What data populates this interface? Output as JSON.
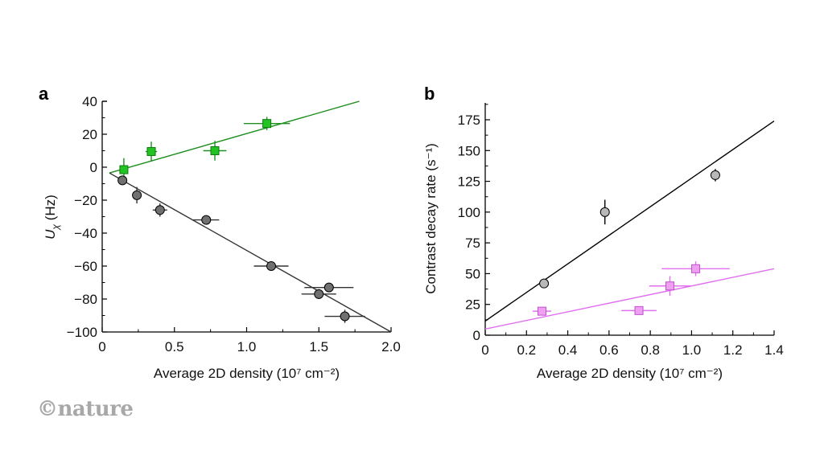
{
  "logo": "©nature",
  "chart_data": [
    {
      "panel": "a",
      "type": "scatter",
      "title": "",
      "xlabel": "Average 2D density (10⁷ cm⁻²)",
      "ylabel": "U_χ (Hz)",
      "xlim": [
        0,
        2.0
      ],
      "ylim": [
        -100,
        40
      ],
      "xticks": [
        0,
        0.5,
        1.0,
        1.5,
        2.0
      ],
      "xtick_labels": [
        "0",
        "0.5",
        "1.0",
        "1.5",
        "2.0"
      ],
      "yticks": [
        40,
        20,
        0,
        -20,
        -40,
        -60,
        -80,
        -100
      ],
      "ytick_labels": [
        "40",
        "20",
        "0",
        "−20",
        "−40",
        "−60",
        "−80",
        "−100"
      ],
      "grid": false,
      "series": [
        {
          "name": "green squares",
          "marker": "square",
          "color": "#22c322",
          "line_color": "#1f8f1f",
          "points": [
            {
              "x": 0.15,
              "y": -1.5,
              "xerr": 0.0,
              "yerr": 7
            },
            {
              "x": 0.34,
              "y": 9.5,
              "xerr": 0.04,
              "yerr": 6
            },
            {
              "x": 0.78,
              "y": 10,
              "xerr": 0.08,
              "yerr": 6
            },
            {
              "x": 1.14,
              "y": 26.5,
              "xerr": 0.16,
              "yerr": 4
            }
          ],
          "fit": {
            "x": [
              0.05,
              1.78
            ],
            "y": [
              -3.5,
              40
            ]
          }
        },
        {
          "name": "grey circles",
          "marker": "circle",
          "color": "#707070",
          "line_color": "#333333",
          "points": [
            {
              "x": 0.14,
              "y": -8,
              "xerr": 0.0,
              "yerr": 1
            },
            {
              "x": 0.24,
              "y": -17,
              "xerr": 0.0,
              "yerr": 5
            },
            {
              "x": 0.4,
              "y": -26,
              "xerr": 0.05,
              "yerr": 4
            },
            {
              "x": 0.72,
              "y": -32,
              "xerr": 0.09,
              "yerr": 2
            },
            {
              "x": 1.17,
              "y": -60,
              "xerr": 0.12,
              "yerr": 0
            },
            {
              "x": 1.57,
              "y": -73,
              "xerr": 0.17,
              "yerr": 0
            },
            {
              "x": 1.5,
              "y": -77,
              "xerr": 0.12,
              "yerr": 3
            },
            {
              "x": 1.68,
              "y": -90.5,
              "xerr": 0.14,
              "yerr": 4
            }
          ],
          "fit": {
            "x": [
              0.05,
              2.0
            ],
            "y": [
              -3.5,
              -100
            ]
          }
        }
      ]
    },
    {
      "panel": "b",
      "type": "scatter",
      "title": "",
      "xlabel": "Average 2D density (10⁷ cm⁻²)",
      "ylabel": "Contrast decay rate (s⁻¹)",
      "xlim": [
        0,
        1.4
      ],
      "ylim": [
        0,
        190
      ],
      "xticks": [
        0,
        0.2,
        0.4,
        0.6,
        0.8,
        1.0,
        1.2,
        1.4
      ],
      "xtick_labels": [
        "0",
        "0.2",
        "0.4",
        "0.6",
        "0.8",
        "1.0",
        "1.2",
        "1.4"
      ],
      "yticks": [
        0,
        25,
        50,
        75,
        100,
        125,
        150,
        175
      ],
      "ytick_labels": [
        "0",
        "25",
        "50",
        "75",
        "100",
        "125",
        "150",
        "175"
      ],
      "grid": false,
      "series": [
        {
          "name": "grey circles",
          "marker": "circle",
          "color": "#b8b8b8",
          "line_color": "#000000",
          "points": [
            {
              "x": 0.285,
              "y": 42,
              "xerr": 0.0,
              "yerr": 3
            },
            {
              "x": 0.58,
              "y": 100,
              "xerr": 0.0,
              "yerr": 10
            },
            {
              "x": 1.115,
              "y": 130,
              "xerr": 0.0,
              "yerr": 5
            }
          ],
          "fit": {
            "x": [
              0,
              1.4
            ],
            "y": [
              11.5,
              174
            ]
          }
        },
        {
          "name": "magenta squares",
          "marker": "square",
          "color": "#f0a0f0",
          "line_color": "#e070f0",
          "points": [
            {
              "x": 0.275,
              "y": 19.5,
              "xerr": 0.045,
              "yerr": 0
            },
            {
              "x": 0.745,
              "y": 20,
              "xerr": 0.085,
              "yerr": 0
            },
            {
              "x": 0.895,
              "y": 40,
              "xerr": 0.1,
              "yerr": 8
            },
            {
              "x": 1.02,
              "y": 54,
              "xerr": 0.165,
              "yerr": 6
            }
          ],
          "fit": {
            "x": [
              0,
              1.4
            ],
            "y": [
              5,
              54
            ]
          }
        }
      ]
    }
  ]
}
